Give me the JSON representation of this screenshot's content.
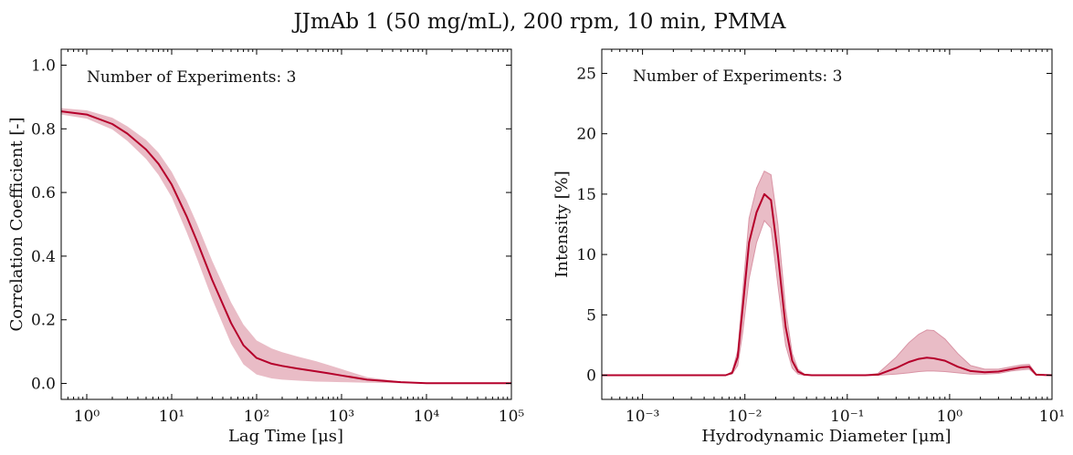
{
  "figure": {
    "title": "JJmAb 1 (50 mg/mL), 200 rpm, 10 min, PMMA",
    "line_color": "#b5002b",
    "band_color": "#e7b5c0"
  },
  "chart_data": [
    {
      "type": "line",
      "name": "correlation",
      "xlabel": "Lag Time [μs]",
      "ylabel": "Correlation Coefficient [-]",
      "xscale": "log",
      "xlim": [
        0.5,
        100000
      ],
      "ylim": [
        -0.05,
        1.05
      ],
      "xticks": [
        1,
        10,
        100,
        1000,
        10000,
        100000
      ],
      "xticklabels": [
        "10⁰",
        "10¹",
        "10²",
        "10³",
        "10⁴",
        "10⁵"
      ],
      "yticks": [
        0,
        0.2,
        0.4,
        0.6,
        0.8,
        1.0
      ],
      "yticklabels": [
        "0.0",
        "0.2",
        "0.4",
        "0.6",
        "0.8",
        "1.0"
      ],
      "annotation": "Number of Experiments: 3",
      "x": [
        0.5,
        1,
        2,
        3,
        5,
        7,
        10,
        15,
        20,
        30,
        50,
        70,
        100,
        150,
        200,
        300,
        500,
        700,
        1000,
        2000,
        5000,
        10000,
        20000,
        50000,
        100000
      ],
      "mean": [
        0.855,
        0.845,
        0.815,
        0.785,
        0.735,
        0.69,
        0.625,
        0.525,
        0.445,
        0.325,
        0.19,
        0.12,
        0.08,
        0.062,
        0.055,
        0.047,
        0.038,
        0.032,
        0.025,
        0.012,
        0.004,
        0.001,
        0.001,
        0.001,
        0.001
      ],
      "upper": [
        0.865,
        0.858,
        0.835,
        0.808,
        0.765,
        0.725,
        0.665,
        0.575,
        0.5,
        0.385,
        0.255,
        0.185,
        0.135,
        0.11,
        0.098,
        0.085,
        0.07,
        0.058,
        0.045,
        0.02,
        0.006,
        0.002,
        0.002,
        0.002,
        0.002
      ],
      "lower": [
        0.845,
        0.832,
        0.798,
        0.762,
        0.705,
        0.655,
        0.585,
        0.475,
        0.39,
        0.265,
        0.125,
        0.06,
        0.028,
        0.016,
        0.012,
        0.009,
        0.006,
        0.005,
        0.004,
        0.002,
        0.001,
        0.0,
        0.0,
        0.0,
        0.0
      ]
    },
    {
      "type": "line",
      "name": "size-distribution",
      "xlabel": "Hydrodynamic Diameter [μm]",
      "ylabel": "Intensity [%]",
      "xscale": "log",
      "xlim": [
        0.0004,
        10
      ],
      "ylim": [
        -2,
        27
      ],
      "xticks": [
        0.001,
        0.01,
        0.1,
        1,
        10
      ],
      "xticklabels": [
        "10⁻³",
        "10⁻²",
        "10⁻¹",
        "10⁰",
        "10¹"
      ],
      "yticks": [
        0,
        5,
        10,
        15,
        20,
        25
      ],
      "yticklabels": [
        "0",
        "5",
        "10",
        "15",
        "20",
        "25"
      ],
      "annotation": "Number of Experiments: 3",
      "x": [
        0.0004,
        0.001,
        0.003,
        0.0065,
        0.0075,
        0.0085,
        0.0095,
        0.011,
        0.013,
        0.0155,
        0.018,
        0.021,
        0.025,
        0.029,
        0.033,
        0.038,
        0.045,
        0.06,
        0.1,
        0.15,
        0.2,
        0.3,
        0.4,
        0.5,
        0.6,
        0.7,
        0.9,
        1.2,
        1.6,
        2.2,
        3,
        4,
        5,
        6,
        7,
        10
      ],
      "mean": [
        0,
        0,
        0,
        0,
        0.2,
        1.5,
        5.5,
        11.0,
        13.5,
        15.0,
        14.5,
        10.0,
        4.0,
        1.2,
        0.3,
        0.05,
        0,
        0,
        0,
        0,
        0.05,
        0.6,
        1.1,
        1.35,
        1.45,
        1.4,
        1.2,
        0.7,
        0.35,
        0.25,
        0.3,
        0.5,
        0.65,
        0.7,
        0.05,
        0
      ],
      "upper": [
        0,
        0,
        0,
        0,
        0.3,
        2.0,
        6.8,
        13.0,
        15.5,
        16.9,
        16.6,
        12.5,
        5.5,
        1.8,
        0.5,
        0.1,
        0,
        0,
        0,
        0,
        0.15,
        1.5,
        2.7,
        3.4,
        3.75,
        3.7,
        3.0,
        1.8,
        0.8,
        0.5,
        0.5,
        0.7,
        0.85,
        0.9,
        0.1,
        0
      ],
      "lower": [
        0,
        0,
        0,
        0,
        0.1,
        0.8,
        3.5,
        8.0,
        11.0,
        12.8,
        12.2,
        7.5,
        2.5,
        0.6,
        0.1,
        0,
        0,
        0,
        0,
        0,
        0,
        0.1,
        0.2,
        0.3,
        0.35,
        0.35,
        0.3,
        0.2,
        0.1,
        0.1,
        0.15,
        0.35,
        0.45,
        0.5,
        0,
        0
      ]
    }
  ]
}
